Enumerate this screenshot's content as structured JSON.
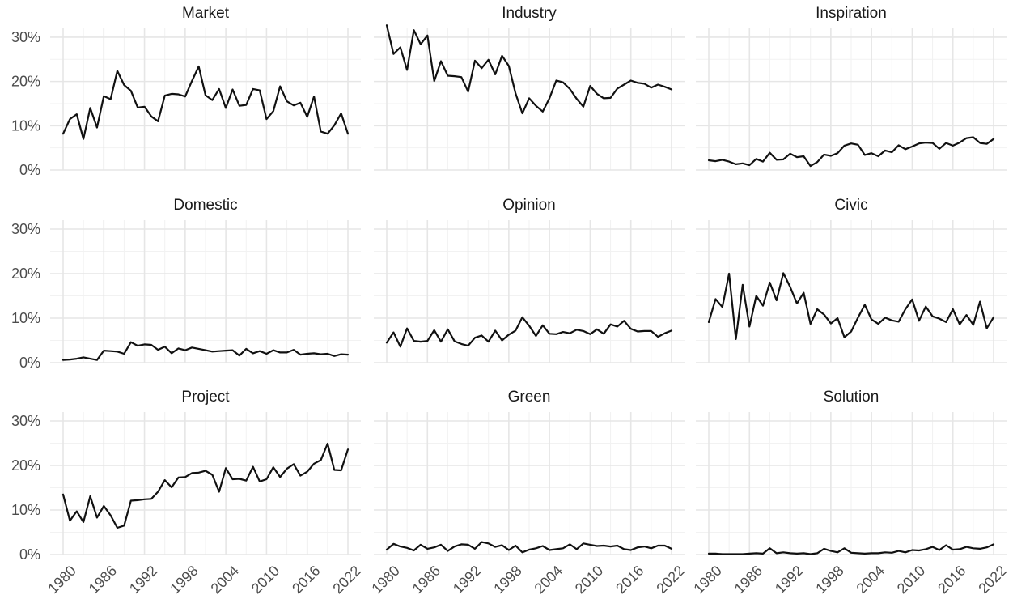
{
  "chart_data": {
    "type": "line",
    "layout": "facet-grid-3x3",
    "grid": true,
    "legend": "none",
    "xlim": [
      1980,
      2022
    ],
    "ylim": [
      0,
      32
    ],
    "x_ticks": [
      1980,
      1986,
      1992,
      1998,
      2004,
      2010,
      2016,
      2022
    ],
    "x_tick_labels": [
      "1980",
      "1986",
      "1992",
      "1998",
      "2004",
      "2010",
      "2016",
      "2022"
    ],
    "y_ticks": [
      0,
      10,
      20,
      30
    ],
    "y_tick_labels": [
      "0%",
      "10%",
      "20%",
      "30%"
    ],
    "line_color": "#111111",
    "x": [
      1980,
      1981,
      1982,
      1983,
      1984,
      1985,
      1986,
      1987,
      1988,
      1989,
      1990,
      1991,
      1992,
      1993,
      1994,
      1995,
      1996,
      1997,
      1998,
      1999,
      2000,
      2001,
      2002,
      2003,
      2004,
      2005,
      2006,
      2007,
      2008,
      2009,
      2010,
      2011,
      2012,
      2013,
      2014,
      2015,
      2016,
      2017,
      2018,
      2019,
      2020,
      2021,
      2022
    ],
    "panels": [
      {
        "title": "Market",
        "values": [
          8.2,
          11.5,
          12.6,
          7.0,
          14.0,
          9.6,
          16.7,
          16.0,
          22.4,
          19.2,
          17.9,
          14.1,
          14.3,
          12.1,
          11.0,
          16.8,
          17.2,
          17.1,
          16.6,
          20.1,
          23.4,
          16.9,
          15.8,
          18.3,
          14.0,
          18.2,
          14.5,
          14.7,
          18.3,
          18.0,
          11.5,
          13.3,
          18.9,
          15.5,
          14.6,
          15.2,
          12.0,
          16.6,
          8.7,
          8.2,
          10.1,
          12.8,
          8.2
        ]
      },
      {
        "title": "Industry",
        "values": [
          32.7,
          26.2,
          27.7,
          22.6,
          31.6,
          28.4,
          30.4,
          20.1,
          24.6,
          21.3,
          21.2,
          21.0,
          17.7,
          24.7,
          23.0,
          24.9,
          21.6,
          25.8,
          23.5,
          17.3,
          12.8,
          16.2,
          14.5,
          13.2,
          16.2,
          20.2,
          19.8,
          18.3,
          16.1,
          14.3,
          19.0,
          17.2,
          16.2,
          16.3,
          18.4,
          19.3,
          20.2,
          19.7,
          19.5,
          18.6,
          19.3,
          18.8,
          18.2
        ]
      },
      {
        "title": "Inspiration",
        "values": [
          2.2,
          2.0,
          2.3,
          1.9,
          1.3,
          1.5,
          1.1,
          2.5,
          1.9,
          3.9,
          2.3,
          2.4,
          3.7,
          2.9,
          3.1,
          0.9,
          1.8,
          3.5,
          3.2,
          3.8,
          5.5,
          6.0,
          5.7,
          3.4,
          3.8,
          3.1,
          4.4,
          4.0,
          5.6,
          4.7,
          5.3,
          6.0,
          6.2,
          6.1,
          4.8,
          6.1,
          5.5,
          6.2,
          7.2,
          7.4,
          6.1,
          5.9,
          7.0
        ]
      },
      {
        "title": "Domestic",
        "values": [
          0.6,
          0.7,
          0.9,
          1.2,
          0.9,
          0.6,
          2.7,
          2.6,
          2.5,
          2.0,
          4.6,
          3.8,
          4.1,
          4.0,
          2.9,
          3.6,
          2.1,
          3.2,
          2.8,
          3.4,
          3.1,
          2.8,
          2.5,
          2.6,
          2.7,
          2.8,
          1.6,
          3.1,
          2.1,
          2.6,
          2.0,
          2.8,
          2.3,
          2.3,
          2.9,
          1.8,
          2.0,
          2.1,
          1.9,
          2.0,
          1.5,
          1.9,
          1.8
        ]
      },
      {
        "title": "Opinion",
        "values": [
          4.5,
          6.8,
          3.6,
          7.7,
          4.9,
          4.7,
          4.9,
          7.3,
          4.7,
          7.5,
          4.8,
          4.2,
          3.8,
          5.6,
          6.1,
          4.7,
          7.2,
          5.0,
          6.3,
          7.2,
          10.2,
          8.3,
          6.0,
          8.4,
          6.5,
          6.4,
          6.9,
          6.6,
          7.4,
          7.1,
          6.4,
          7.5,
          6.5,
          8.6,
          8.1,
          9.4,
          7.6,
          7.0,
          7.1,
          7.1,
          5.8,
          6.6,
          7.2
        ]
      },
      {
        "title": "Civic",
        "values": [
          9.1,
          14.3,
          12.5,
          20.0,
          5.3,
          17.5,
          8.1,
          15.0,
          12.8,
          18.0,
          14.0,
          20.1,
          17.0,
          13.3,
          15.7,
          8.7,
          12.0,
          10.8,
          8.8,
          10.0,
          5.7,
          7.0,
          10.1,
          13.0,
          9.7,
          8.7,
          10.1,
          9.5,
          9.2,
          12.0,
          14.2,
          9.4,
          12.6,
          10.4,
          9.9,
          9.1,
          12.0,
          8.6,
          10.7,
          8.5,
          13.7,
          7.7,
          10.2
        ]
      },
      {
        "title": "Project",
        "values": [
          13.5,
          7.6,
          9.7,
          7.3,
          13.1,
          8.3,
          10.9,
          8.8,
          6.0,
          6.5,
          12.1,
          12.2,
          12.4,
          12.5,
          14.1,
          16.7,
          15.1,
          17.3,
          17.4,
          18.3,
          18.4,
          18.8,
          17.9,
          14.1,
          19.4,
          16.9,
          17.0,
          16.6,
          19.7,
          16.4,
          16.9,
          19.6,
          17.4,
          19.3,
          20.3,
          17.7,
          18.6,
          20.4,
          21.2,
          24.9,
          19.0,
          18.9,
          23.6
        ]
      },
      {
        "title": "Green",
        "values": [
          1.1,
          2.4,
          1.8,
          1.5,
          0.9,
          2.2,
          1.3,
          1.6,
          2.2,
          0.8,
          1.8,
          2.3,
          2.2,
          1.3,
          2.8,
          2.5,
          1.7,
          2.1,
          1.0,
          2.0,
          0.5,
          1.1,
          1.4,
          1.9,
          1.0,
          1.2,
          1.4,
          2.3,
          1.2,
          2.5,
          2.2,
          1.9,
          2.0,
          1.8,
          2.0,
          1.2,
          1.0,
          1.6,
          1.8,
          1.4,
          2.0,
          2.0,
          1.3
        ]
      },
      {
        "title": "Solution",
        "values": [
          0.2,
          0.2,
          0.1,
          0.1,
          0.1,
          0.1,
          0.2,
          0.3,
          0.2,
          1.4,
          0.3,
          0.5,
          0.3,
          0.2,
          0.3,
          0.1,
          0.3,
          1.3,
          0.8,
          0.5,
          1.4,
          0.4,
          0.3,
          0.2,
          0.3,
          0.3,
          0.5,
          0.4,
          0.8,
          0.5,
          1.0,
          0.9,
          1.2,
          1.7,
          1.0,
          2.1,
          1.1,
          1.2,
          1.7,
          1.4,
          1.3,
          1.6,
          2.3
        ]
      }
    ]
  }
}
